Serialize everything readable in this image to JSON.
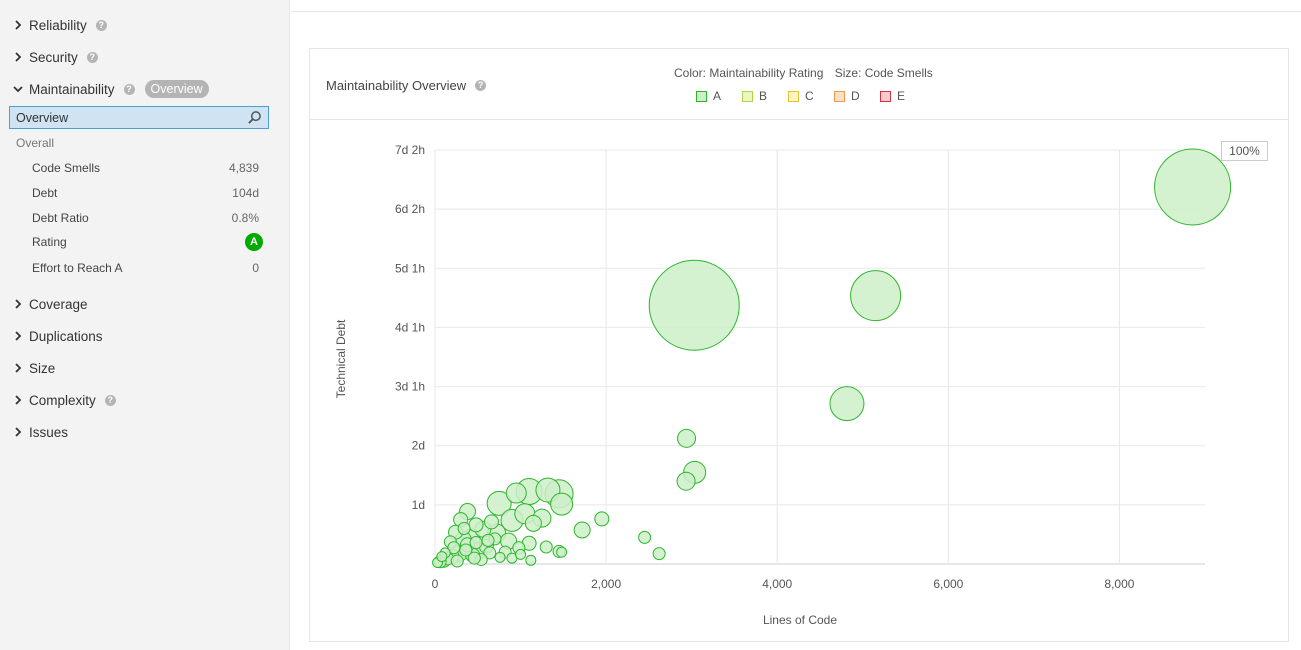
{
  "sidebar": {
    "sections": [
      {
        "label": "Reliability",
        "help": "?",
        "expanded": false
      },
      {
        "label": "Security",
        "help": "?",
        "expanded": false
      },
      {
        "label": "Maintainability",
        "help": "?",
        "badge": "Overview",
        "expanded": true
      },
      {
        "label": "Coverage",
        "expanded": false
      },
      {
        "label": "Duplications",
        "expanded": false
      },
      {
        "label": "Size",
        "expanded": false
      },
      {
        "label": "Complexity",
        "help": "?",
        "expanded": false
      },
      {
        "label": "Issues",
        "expanded": false
      }
    ],
    "selected_item": "Overview",
    "group_title": "Overall",
    "metrics": [
      {
        "label": "Code Smells",
        "value": "4,839"
      },
      {
        "label": "Debt",
        "value": "104d"
      },
      {
        "label": "Debt Ratio",
        "value": "0.8%"
      },
      {
        "label": "Rating",
        "value": "A"
      },
      {
        "label": "Effort to Reach A",
        "value": "0"
      }
    ]
  },
  "panel": {
    "title": "Maintainability Overview",
    "help": "?",
    "legend_color_caption": "Color: Maintainability Rating",
    "legend_size_caption": "Size: Code Smells",
    "legend": [
      {
        "label": "A",
        "fill": "#cdeec8",
        "stroke": "#2db52d"
      },
      {
        "label": "B",
        "fill": "#eaf7c4",
        "stroke": "#b0d44a"
      },
      {
        "label": "C",
        "fill": "#fdf3c4",
        "stroke": "#e4c42d"
      },
      {
        "label": "D",
        "fill": "#fde0c8",
        "stroke": "#ed9a50"
      },
      {
        "label": "E",
        "fill": "#f8cccc",
        "stroke": "#d4333f"
      }
    ],
    "zoom": "100%"
  },
  "chart_data": {
    "type": "scatter",
    "xlabel": "Lines of Code",
    "ylabel": "Technical Debt",
    "x_ticks": [
      {
        "v": 0,
        "label": "0"
      },
      {
        "v": 2000,
        "label": "2,000"
      },
      {
        "v": 4000,
        "label": "4,000"
      },
      {
        "v": 6000,
        "label": "6,000"
      },
      {
        "v": 8000,
        "label": "8,000"
      }
    ],
    "y_ticks": [
      {
        "v": 0,
        "label": ""
      },
      {
        "v": 8,
        "label": "1d"
      },
      {
        "v": 16,
        "label": "2d"
      },
      {
        "v": 24,
        "label": "3d 1h"
      },
      {
        "v": 32,
        "label": "4d 1h"
      },
      {
        "v": 40,
        "label": "5d 1h"
      },
      {
        "v": 48,
        "label": "6d 2h"
      },
      {
        "v": 56,
        "label": "7d 2h"
      }
    ],
    "xlim": [
      0,
      9000
    ],
    "ylim": [
      0,
      56
    ],
    "grid": true,
    "color": "#2db52d",
    "fill": "#cdeec8",
    "points": [
      {
        "x": 8855,
        "y": 51.0,
        "size": 38
      },
      {
        "x": 3030,
        "y": 35.0,
        "size": 45
      },
      {
        "x": 5150,
        "y": 36.3,
        "size": 25
      },
      {
        "x": 4815,
        "y": 21.7,
        "size": 17
      },
      {
        "x": 2940,
        "y": 17.0,
        "size": 9
      },
      {
        "x": 3035,
        "y": 12.4,
        "size": 11
      },
      {
        "x": 2935,
        "y": 11.2,
        "size": 9
      },
      {
        "x": 1480,
        "y": 8.1,
        "size": 11
      },
      {
        "x": 1450,
        "y": 9.5,
        "size": 14
      },
      {
        "x": 1320,
        "y": 10.0,
        "size": 12
      },
      {
        "x": 1100,
        "y": 9.8,
        "size": 13
      },
      {
        "x": 950,
        "y": 9.6,
        "size": 10
      },
      {
        "x": 750,
        "y": 8.2,
        "size": 12
      },
      {
        "x": 1050,
        "y": 6.8,
        "size": 10
      },
      {
        "x": 1250,
        "y": 6.2,
        "size": 9
      },
      {
        "x": 900,
        "y": 5.9,
        "size": 11
      },
      {
        "x": 1150,
        "y": 5.5,
        "size": 8
      },
      {
        "x": 1950,
        "y": 6.1,
        "size": 7
      },
      {
        "x": 1720,
        "y": 4.6,
        "size": 8
      },
      {
        "x": 2450,
        "y": 3.6,
        "size": 6
      },
      {
        "x": 2620,
        "y": 1.4,
        "size": 6
      },
      {
        "x": 1450,
        "y": 1.7,
        "size": 6
      },
      {
        "x": 1480,
        "y": 1.6,
        "size": 5
      },
      {
        "x": 1300,
        "y": 2.3,
        "size": 6
      },
      {
        "x": 1100,
        "y": 2.8,
        "size": 7
      },
      {
        "x": 980,
        "y": 2.2,
        "size": 6
      },
      {
        "x": 860,
        "y": 3.1,
        "size": 8
      },
      {
        "x": 720,
        "y": 4.2,
        "size": 9
      },
      {
        "x": 660,
        "y": 5.7,
        "size": 7
      },
      {
        "x": 560,
        "y": 4.7,
        "size": 8
      },
      {
        "x": 480,
        "y": 5.3,
        "size": 7
      },
      {
        "x": 380,
        "y": 7.1,
        "size": 8
      },
      {
        "x": 300,
        "y": 6.0,
        "size": 7
      },
      {
        "x": 420,
        "y": 3.5,
        "size": 9
      },
      {
        "x": 330,
        "y": 3.3,
        "size": 8
      },
      {
        "x": 240,
        "y": 4.3,
        "size": 7
      },
      {
        "x": 180,
        "y": 3.0,
        "size": 6
      },
      {
        "x": 600,
        "y": 2.4,
        "size": 7
      },
      {
        "x": 640,
        "y": 1.5,
        "size": 6
      },
      {
        "x": 520,
        "y": 1.9,
        "size": 8
      },
      {
        "x": 440,
        "y": 1.2,
        "size": 7
      },
      {
        "x": 360,
        "y": 1.9,
        "size": 6
      },
      {
        "x": 280,
        "y": 1.4,
        "size": 8
      },
      {
        "x": 200,
        "y": 1.0,
        "size": 7
      },
      {
        "x": 150,
        "y": 0.7,
        "size": 6
      },
      {
        "x": 100,
        "y": 0.5,
        "size": 7
      },
      {
        "x": 60,
        "y": 0.3,
        "size": 6
      },
      {
        "x": 30,
        "y": 0.2,
        "size": 5
      },
      {
        "x": 220,
        "y": 2.2,
        "size": 6
      },
      {
        "x": 380,
        "y": 2.6,
        "size": 7
      },
      {
        "x": 820,
        "y": 1.6,
        "size": 6
      },
      {
        "x": 900,
        "y": 0.8,
        "size": 5
      },
      {
        "x": 1000,
        "y": 1.3,
        "size": 5
      },
      {
        "x": 1120,
        "y": 0.5,
        "size": 5
      },
      {
        "x": 760,
        "y": 0.9,
        "size": 5
      },
      {
        "x": 540,
        "y": 0.6,
        "size": 6
      },
      {
        "x": 260,
        "y": 0.4,
        "size": 6
      },
      {
        "x": 480,
        "y": 2.9,
        "size": 6
      },
      {
        "x": 700,
        "y": 3.4,
        "size": 6
      },
      {
        "x": 120,
        "y": 1.5,
        "size": 5
      },
      {
        "x": 80,
        "y": 1.0,
        "size": 5
      },
      {
        "x": 340,
        "y": 4.8,
        "size": 6
      },
      {
        "x": 460,
        "y": 0.8,
        "size": 6
      },
      {
        "x": 620,
        "y": 3.2,
        "size": 6
      }
    ]
  }
}
